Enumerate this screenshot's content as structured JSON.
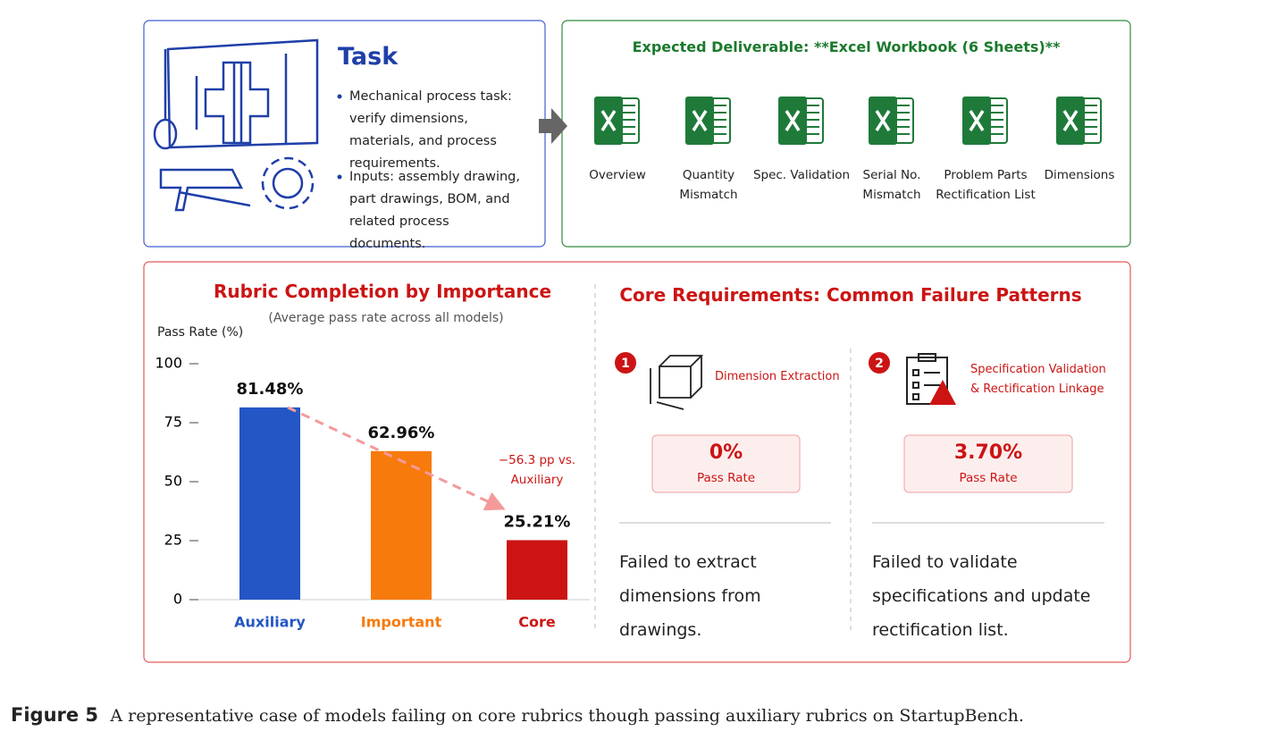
{
  "task": {
    "title": "Task",
    "bullets": [
      "Mechanical process task: verify dimensions, materials, and process requirements.",
      "Inputs: assembly drawing, part drawings, BOM, and related process documents."
    ]
  },
  "deliverable": {
    "title": "Expected Deliverable: **Excel Workbook (6 Sheets)**",
    "sheets": [
      "Overview",
      "Quantity Mismatch",
      "Spec. Validation",
      "Serial No. Mismatch",
      "Problem Parts Rectification List",
      "Dimensions"
    ]
  },
  "chart_data": {
    "type": "bar",
    "title": "Rubric Completion by Importance",
    "subtitle": "(Average pass rate across all models)",
    "y_label": "Pass Rate (%)",
    "categories": [
      "Auxiliary",
      "Important",
      "Core"
    ],
    "values": [
      81.48,
      62.96,
      25.21
    ],
    "value_labels": [
      "81.48%",
      "62.96%",
      "25.21%"
    ],
    "colors": [
      "#2456c5",
      "#f77a0c",
      "#cc1414"
    ],
    "ylim": [
      0,
      100
    ],
    "yticks": [
      0,
      25,
      50,
      75,
      100
    ],
    "grid": false,
    "annotation": "−56.3 pp vs. Auxiliary"
  },
  "failures": {
    "title": "Core Requirements: Common Failure Patterns",
    "items": [
      {
        "number": "1",
        "label": "Dimension Extraction",
        "rate": "0%",
        "rate_label": "Pass Rate",
        "description": "Failed to extract dimensions from drawings."
      },
      {
        "number": "2",
        "label": "Specification Validation & Rectification Linkage",
        "rate": "3.70%",
        "rate_label": "Pass Rate",
        "description": "Failed to validate specifications and update rectification list."
      }
    ]
  },
  "caption": {
    "label": "Figure 5",
    "text": "A representative case of models failing on core rubrics though passing auxiliary rubrics on StartupBench."
  }
}
